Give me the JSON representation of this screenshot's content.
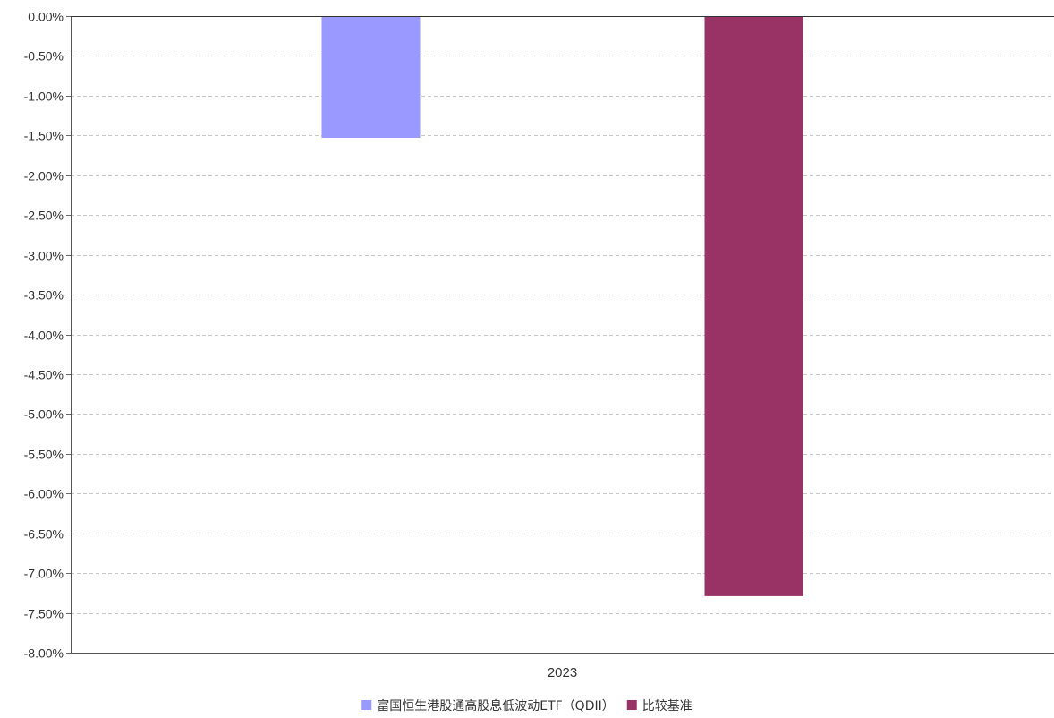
{
  "chart_data": {
    "type": "bar",
    "title": "",
    "xlabel": "",
    "ylabel": "",
    "categories": [
      "2023"
    ],
    "series": [
      {
        "name": "富国恒生港股通高股息低波动ETF（QDII）",
        "color": "#9999ff",
        "values": [
          -1.53
        ]
      },
      {
        "name": "比较基准",
        "color": "#993366",
        "values": [
          -7.29
        ]
      }
    ],
    "ylim": [
      -8.0,
      0.0
    ],
    "ytick_step": 0.5,
    "y_tick_labels": [
      "0.00%",
      "-0.50%",
      "-1.00%",
      "-1.50%",
      "-2.00%",
      "-2.50%",
      "-3.00%",
      "-3.50%",
      "-4.00%",
      "-4.50%",
      "-5.00%",
      "-5.50%",
      "-6.00%",
      "-6.50%",
      "-7.00%",
      "-7.50%",
      "-8.00%"
    ],
    "grid": true,
    "legend": "bottom-center"
  }
}
